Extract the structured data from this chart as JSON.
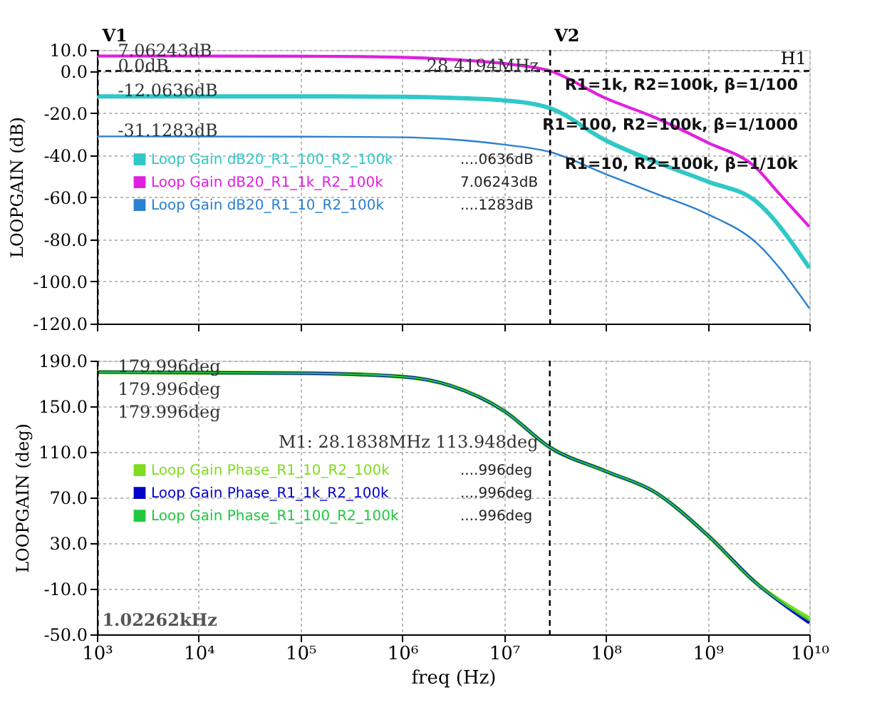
{
  "chart_data": [
    {
      "type": "line",
      "ylabel": "LOOPGAIN (dB)",
      "log": "x",
      "grid": true,
      "legend": "center left",
      "tick_labels": "y",
      "xlim": [
        1000,
        10000000000
      ],
      "xticks": [
        1000,
        10000,
        100000,
        1000000,
        10000000,
        100000000,
        1000000000,
        10000000000
      ],
      "ylim": [
        -120,
        10
      ],
      "yticks": [
        {
          "value": 10,
          "label": "10.0"
        },
        {
          "value": 0,
          "label": "0.0"
        },
        {
          "value": -20,
          "label": "-20.0"
        },
        {
          "value": -40,
          "label": "-40.0"
        },
        {
          "value": -60,
          "label": "-60.0"
        },
        {
          "value": -80,
          "label": "-80.0"
        },
        {
          "value": -100,
          "label": "-100.0"
        },
        {
          "value": -120,
          "label": "-120.0"
        }
      ],
      "series": [
        {
          "name": "Loop Gain dB20_R1_100_R2_100k",
          "color": "#30c8c8",
          "x": [
            1000,
            100000,
            1000000,
            3000000,
            10000000,
            28400000,
            100000000,
            300000000,
            1000000000,
            3000000000,
            10000000000
          ],
          "values": [
            -12.1,
            -12.1,
            -12.3,
            -12.8,
            -14,
            -17.7,
            -33,
            -43,
            -52.5,
            -62,
            -93.5
          ]
        },
        {
          "name": "Loop Gain dB20_R1_1k_R2_100k",
          "color": "#e020e0",
          "x": [
            1000,
            100000,
            1000000,
            3000000,
            10000000,
            28400000,
            100000000,
            300000000,
            1000000000,
            3000000000,
            5000000000,
            10000000000
          ],
          "values": [
            7.1,
            7.0,
            6.5,
            5.5,
            3.5,
            0,
            -13,
            -22,
            -34,
            -46,
            -58,
            -74
          ]
        },
        {
          "name": "Loop Gain dB20_R1_10_R2_100k",
          "color": "#2a80d0",
          "x": [
            1000,
            100000,
            1000000,
            3000000,
            10000000,
            28400000,
            100000000,
            300000000,
            1000000000,
            3000000000,
            10000000000
          ],
          "values": [
            -31.1,
            -31.2,
            -31.5,
            -32.5,
            -35,
            -38.5,
            -49,
            -58,
            -68,
            -81.5,
            -112.7
          ]
        }
      ],
      "ref_lines": [
        {
          "axis": "x",
          "value": 1022.62,
          "label": "V1",
          "line_style": "dashed"
        },
        {
          "axis": "x",
          "value": 28419400,
          "label": "V2",
          "line_style": "dashed"
        },
        {
          "axis": "y",
          "value": 0,
          "label": "H1",
          "line_style": "dashed"
        }
      ],
      "annotations": [
        "....0636dB",
        "7.06243dB",
        "....1283dB",
        "R1=1k, R2=100k, β=1/100",
        "R1=100, R2=100k, β=1/1000",
        "R1=10, R2=100k, β=1/10k",
        {
          "text": "7.06243dB",
          "x": 1022.62,
          "y": 7.06243
        },
        {
          "text": "0.0dB",
          "x": 1022.62,
          "y": 0
        },
        {
          "text": "-12.0636dB",
          "x": 1022.62,
          "y": -12.0636
        },
        {
          "text": "-31.1283dB",
          "x": 1022.62,
          "y": -31.1283
        },
        {
          "text": "28.4194MHz",
          "x": 28419400,
          "y": 0
        }
      ]
    },
    {
      "type": "line",
      "xlabel": "freq (Hz)",
      "ylabel": "LOOPGAIN (deg)",
      "log": "x",
      "grid": true,
      "legend": "center left",
      "xlim": [
        1000,
        10000000000
      ],
      "xticks": [
        {
          "value": 1000,
          "label": "10³"
        },
        {
          "value": 10000,
          "label": "10⁴"
        },
        {
          "value": 100000,
          "label": "10⁵"
        },
        {
          "value": 1000000,
          "label": "10⁶"
        },
        {
          "value": 10000000,
          "label": "10⁷"
        },
        {
          "value": 100000000,
          "label": "10⁸"
        },
        {
          "value": 1000000000,
          "label": "10⁹"
        },
        {
          "value": 10000000000,
          "label": "10¹⁰"
        }
      ],
      "ylim": [
        -50,
        190
      ],
      "yticks": [
        {
          "value": 190,
          "label": "190.0"
        },
        {
          "value": 150,
          "label": "150.0"
        },
        {
          "value": 110,
          "label": "110.0"
        },
        {
          "value": 70,
          "label": "70.0"
        },
        {
          "value": 30,
          "label": "30.0"
        },
        {
          "value": -10,
          "label": "-10.0"
        },
        {
          "value": -50,
          "label": "-50.0"
        }
      ],
      "series": [
        {
          "name": "Loop Gain Phase_R1_10_R2_100k",
          "color": "#80dc20",
          "x": [
            1000,
            100000,
            1000000,
            3000000,
            10000000,
            28200000,
            100000000,
            300000000,
            1000000000,
            3000000000,
            10000000000
          ],
          "values": [
            180,
            179,
            176,
            168,
            146,
            114,
            93,
            75,
            37,
            -5,
            -36
          ]
        },
        {
          "name": "Loop Gain Phase_R1_1k_R2_100k",
          "color": "#0000c8",
          "x": [
            1000,
            100000,
            1000000,
            3000000,
            10000000,
            28200000,
            100000000,
            300000000,
            1000000000,
            3000000000,
            10000000000
          ],
          "values": [
            180,
            179,
            176,
            168,
            146,
            114,
            93,
            75,
            37,
            -5,
            -40
          ]
        },
        {
          "name": "Loop Gain Phase_R1_100_R2_100k",
          "color": "#20c840",
          "x": [
            1000,
            100000,
            1000000,
            3000000,
            10000000,
            28200000,
            100000000,
            300000000,
            1000000000,
            3000000000,
            10000000000
          ],
          "values": [
            180,
            179,
            176,
            168,
            146,
            114,
            93,
            75,
            37,
            -5,
            -38
          ]
        }
      ],
      "ref_lines": [
        {
          "axis": "x",
          "value": 1022.62,
          "label": "1.02262kHz",
          "line_style": "dashed"
        },
        {
          "axis": "x",
          "value": 28183800,
          "line_style": "dashed"
        }
      ],
      "annotations": [
        "....996deg",
        "....996deg",
        "....996deg",
        {
          "text": "179.996deg",
          "x": 1022.62,
          "y": 179.996
        },
        {
          "text": "179.996deg",
          "x": 1022.62,
          "y": 179.996
        },
        {
          "text": "179.996deg",
          "x": 1022.62,
          "y": 179.996
        },
        {
          "text": "M1: 28.1838MHz 113.948deg",
          "x": 28183800,
          "y": 113.948
        }
      ]
    }
  ]
}
